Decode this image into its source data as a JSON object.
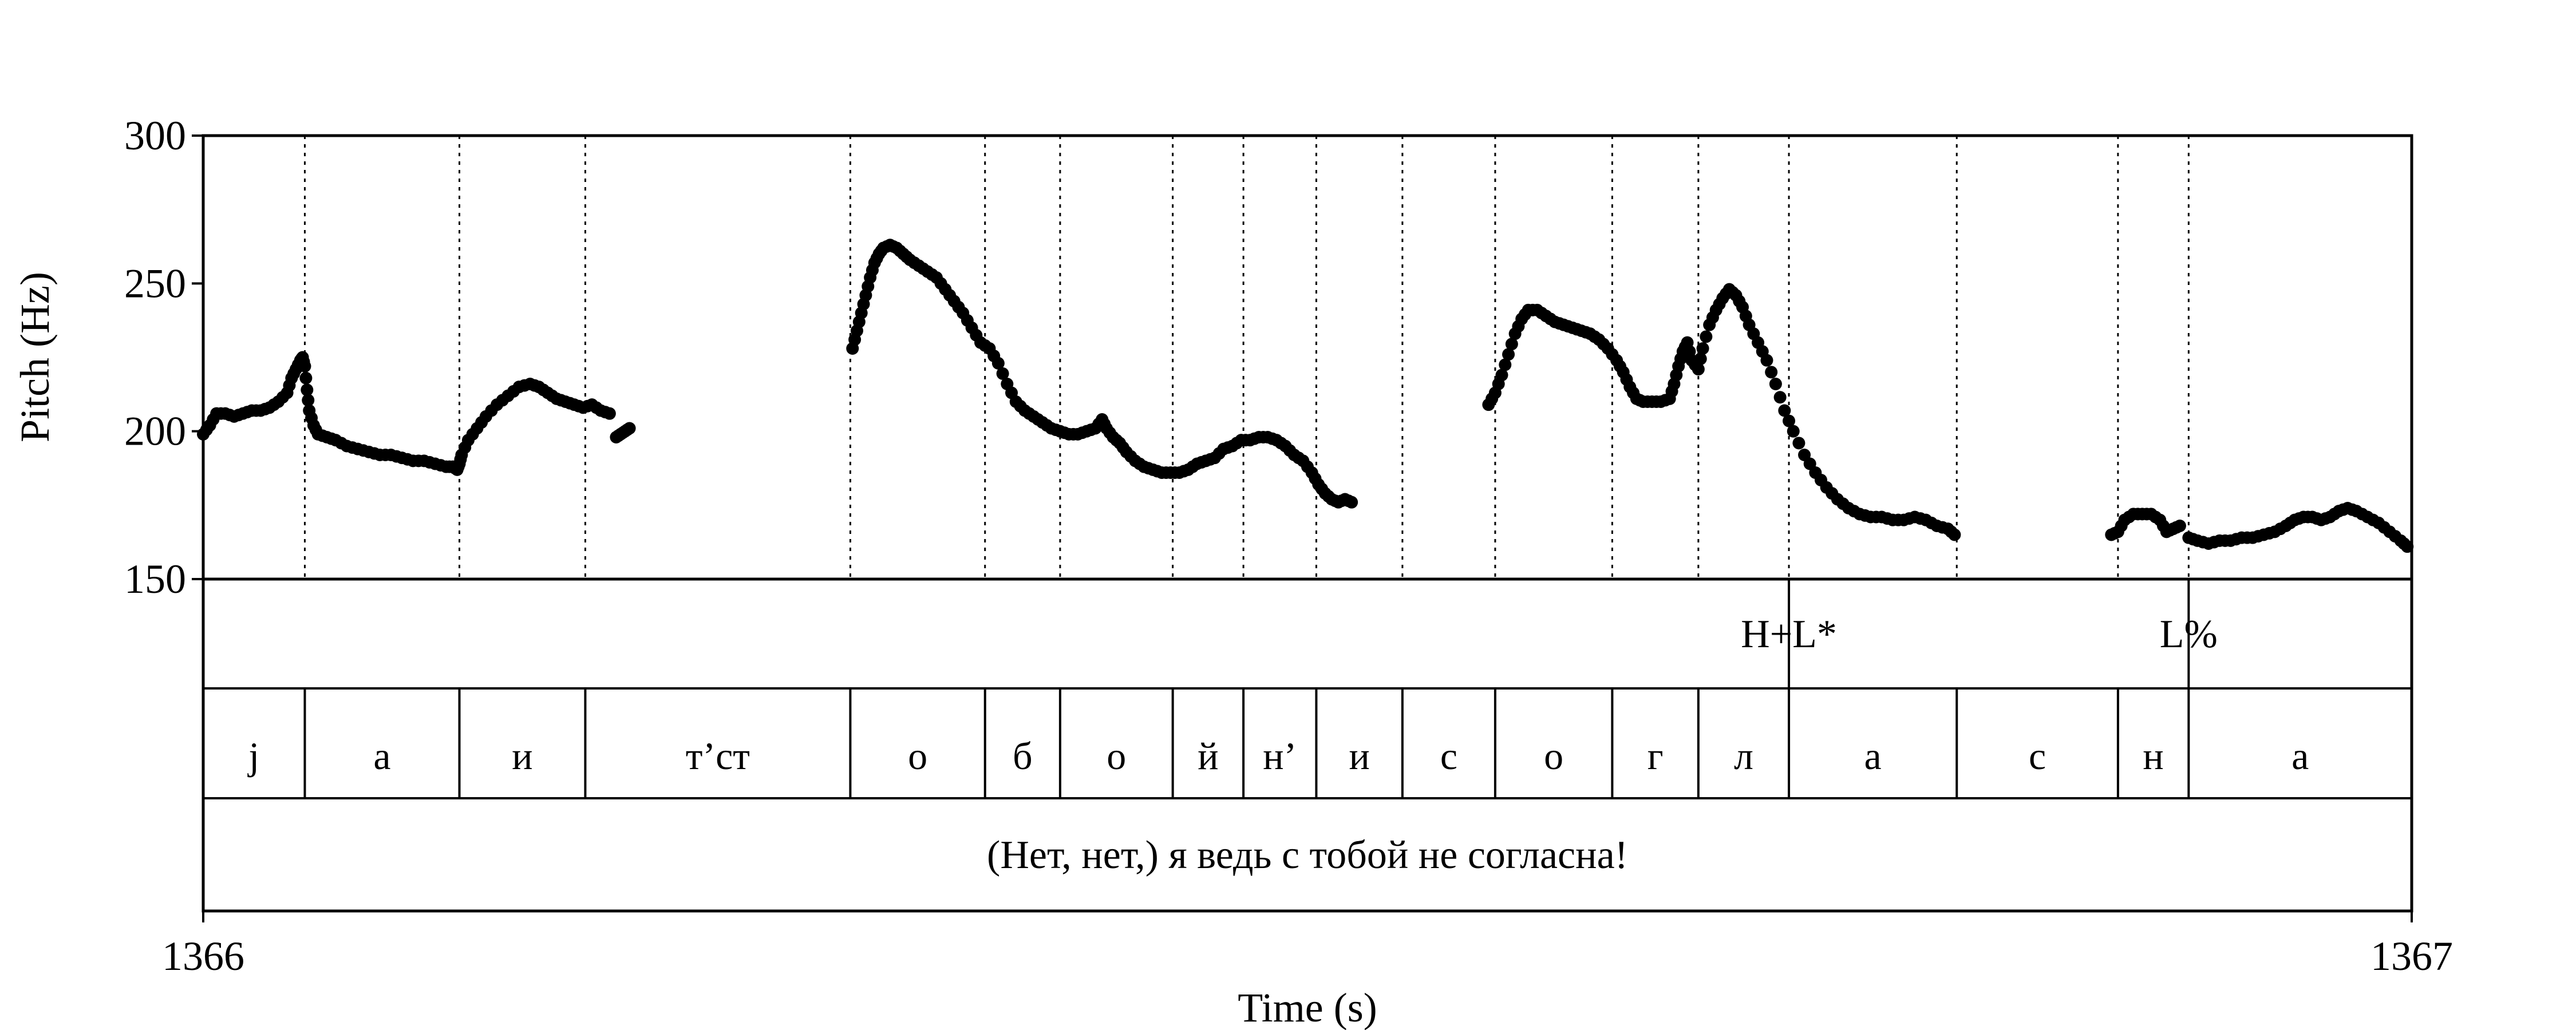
{
  "chart_data": {
    "type": "scatter",
    "xlabel": "Time (s)",
    "ylabel": "Pitch (Hz)",
    "xlim": [
      1366,
      1367
    ],
    "ylim": [
      150,
      300
    ],
    "x_tick_labels": [
      "1366",
      "1367"
    ],
    "y_ticks": [
      150,
      200,
      250,
      300
    ],
    "y_tick_labels": [
      "150",
      "200",
      "250",
      "300"
    ],
    "grid": false,
    "segment_boundaries": [
      0.046,
      0.116,
      0.173,
      0.293,
      0.354,
      0.388,
      0.439,
      0.471,
      0.504,
      0.543,
      0.585,
      0.638,
      0.677,
      0.718,
      0.794,
      0.867,
      0.899
    ],
    "tone_tier": [
      {
        "t": 0.718,
        "label": "H+L*"
      },
      {
        "t": 0.899,
        "label": "L%"
      }
    ],
    "segment_tier": [
      {
        "start": 0.0,
        "end": 0.046,
        "label": "j"
      },
      {
        "start": 0.046,
        "end": 0.116,
        "label": "а"
      },
      {
        "start": 0.116,
        "end": 0.173,
        "label": "и"
      },
      {
        "start": 0.173,
        "end": 0.293,
        "label": "т’ст"
      },
      {
        "start": 0.293,
        "end": 0.354,
        "label": "о"
      },
      {
        "start": 0.354,
        "end": 0.388,
        "label": "б"
      },
      {
        "start": 0.388,
        "end": 0.439,
        "label": "о"
      },
      {
        "start": 0.439,
        "end": 0.471,
        "label": "й"
      },
      {
        "start": 0.471,
        "end": 0.504,
        "label": "н’"
      },
      {
        "start": 0.504,
        "end": 0.543,
        "label": "и"
      },
      {
        "start": 0.543,
        "end": 0.585,
        "label": "с"
      },
      {
        "start": 0.585,
        "end": 0.638,
        "label": "о"
      },
      {
        "start": 0.638,
        "end": 0.677,
        "label": "г"
      },
      {
        "start": 0.677,
        "end": 0.718,
        "label": "л"
      },
      {
        "start": 0.718,
        "end": 0.794,
        "label": "а"
      },
      {
        "start": 0.794,
        "end": 0.867,
        "label": "с"
      },
      {
        "start": 0.867,
        "end": 0.899,
        "label": "н"
      },
      {
        "start": 0.899,
        "end": 1.0,
        "label": "а"
      }
    ],
    "sentence_tier": "(Нет, нет,) я ведь с тобой не согласна!",
    "pitch_contour": [
      [
        [
          0.0,
          199
        ],
        [
          0.003,
          202
        ],
        [
          0.006,
          206
        ],
        [
          0.01,
          206
        ],
        [
          0.014,
          205
        ],
        [
          0.018,
          206
        ],
        [
          0.022,
          207
        ],
        [
          0.026,
          207
        ],
        [
          0.03,
          208
        ],
        [
          0.034,
          210
        ],
        [
          0.038,
          213
        ],
        [
          0.04,
          218
        ],
        [
          0.042,
          221
        ],
        [
          0.044,
          224
        ],
        [
          0.045,
          225
        ],
        [
          0.046,
          222
        ],
        [
          0.047,
          214
        ],
        [
          0.048,
          207
        ],
        [
          0.05,
          202
        ],
        [
          0.052,
          199
        ],
        [
          0.056,
          198
        ],
        [
          0.06,
          197
        ],
        [
          0.065,
          195
        ],
        [
          0.07,
          194
        ],
        [
          0.075,
          193
        ],
        [
          0.08,
          192
        ],
        [
          0.085,
          192
        ],
        [
          0.09,
          191
        ],
        [
          0.095,
          190
        ],
        [
          0.1,
          190
        ],
        [
          0.105,
          189
        ],
        [
          0.11,
          188
        ],
        [
          0.113,
          188
        ],
        [
          0.115,
          187
        ],
        [
          0.116,
          189
        ],
        [
          0.117,
          192
        ],
        [
          0.12,
          197
        ],
        [
          0.124,
          201
        ],
        [
          0.128,
          205
        ],
        [
          0.133,
          209
        ],
        [
          0.138,
          212
        ],
        [
          0.143,
          215
        ],
        [
          0.148,
          216
        ],
        [
          0.152,
          215
        ],
        [
          0.156,
          213
        ],
        [
          0.16,
          211
        ],
        [
          0.164,
          210
        ],
        [
          0.168,
          209
        ],
        [
          0.172,
          208
        ],
        [
          0.176,
          209
        ],
        [
          0.18,
          207
        ],
        [
          0.184,
          206
        ]
      ],
      [
        [
          0.187,
          198
        ],
        [
          0.189,
          199
        ],
        [
          0.191,
          200
        ],
        [
          0.193,
          201
        ]
      ],
      [
        [
          0.294,
          228
        ],
        [
          0.296,
          234
        ],
        [
          0.298,
          240
        ],
        [
          0.3,
          246
        ],
        [
          0.302,
          252
        ],
        [
          0.304,
          257
        ],
        [
          0.306,
          260
        ],
        [
          0.308,
          262
        ],
        [
          0.311,
          263
        ],
        [
          0.314,
          262
        ],
        [
          0.317,
          260
        ],
        [
          0.32,
          258
        ],
        [
          0.324,
          256
        ],
        [
          0.328,
          254
        ],
        [
          0.332,
          252
        ],
        [
          0.336,
          248
        ],
        [
          0.34,
          244
        ],
        [
          0.344,
          240
        ],
        [
          0.348,
          235
        ],
        [
          0.352,
          230
        ],
        [
          0.356,
          228
        ],
        [
          0.36,
          223
        ],
        [
          0.364,
          216
        ],
        [
          0.368,
          210
        ],
        [
          0.372,
          207
        ],
        [
          0.376,
          205
        ],
        [
          0.38,
          203
        ],
        [
          0.384,
          201
        ],
        [
          0.388,
          200
        ],
        [
          0.392,
          199
        ],
        [
          0.396,
          199
        ],
        [
          0.4,
          200
        ],
        [
          0.404,
          201
        ],
        [
          0.407,
          204
        ],
        [
          0.409,
          201
        ],
        [
          0.412,
          198
        ],
        [
          0.415,
          196
        ],
        [
          0.418,
          193
        ],
        [
          0.422,
          190
        ],
        [
          0.426,
          188
        ],
        [
          0.43,
          187
        ],
        [
          0.434,
          186
        ],
        [
          0.438,
          186
        ],
        [
          0.442,
          186
        ],
        [
          0.446,
          187
        ],
        [
          0.45,
          189
        ],
        [
          0.454,
          190
        ],
        [
          0.458,
          191
        ],
        [
          0.462,
          194
        ],
        [
          0.466,
          195
        ],
        [
          0.47,
          197
        ],
        [
          0.474,
          197
        ],
        [
          0.478,
          198
        ],
        [
          0.482,
          198
        ],
        [
          0.486,
          197
        ],
        [
          0.49,
          195
        ],
        [
          0.494,
          192
        ],
        [
          0.498,
          190
        ],
        [
          0.502,
          186
        ],
        [
          0.505,
          182
        ],
        [
          0.508,
          179
        ],
        [
          0.511,
          177
        ],
        [
          0.514,
          176
        ],
        [
          0.517,
          177
        ],
        [
          0.52,
          176
        ]
      ],
      [
        [
          0.582,
          209
        ],
        [
          0.585,
          213
        ],
        [
          0.588,
          219
        ],
        [
          0.591,
          226
        ],
        [
          0.594,
          233
        ],
        [
          0.597,
          238
        ],
        [
          0.6,
          241
        ],
        [
          0.604,
          241
        ],
        [
          0.608,
          239
        ],
        [
          0.612,
          237
        ],
        [
          0.616,
          236
        ],
        [
          0.62,
          235
        ],
        [
          0.624,
          234
        ],
        [
          0.628,
          233
        ],
        [
          0.632,
          231
        ],
        [
          0.636,
          228
        ],
        [
          0.64,
          224
        ],
        [
          0.643,
          220
        ],
        [
          0.646,
          215
        ],
        [
          0.649,
          211
        ],
        [
          0.652,
          210
        ],
        [
          0.656,
          210
        ],
        [
          0.66,
          210
        ],
        [
          0.664,
          211
        ],
        [
          0.666,
          216
        ],
        [
          0.668,
          222
        ],
        [
          0.67,
          227
        ],
        [
          0.672,
          230
        ],
        [
          0.674,
          224
        ],
        [
          0.677,
          221
        ],
        [
          0.679,
          228
        ],
        [
          0.682,
          236
        ],
        [
          0.685,
          241
        ],
        [
          0.688,
          245
        ],
        [
          0.691,
          248
        ],
        [
          0.694,
          246
        ],
        [
          0.697,
          242
        ],
        [
          0.7,
          236
        ],
        [
          0.704,
          230
        ],
        [
          0.708,
          224
        ],
        [
          0.712,
          216
        ],
        [
          0.716,
          207
        ],
        [
          0.72,
          200
        ],
        [
          0.725,
          192
        ],
        [
          0.73,
          186
        ],
        [
          0.735,
          181
        ],
        [
          0.74,
          177
        ],
        [
          0.745,
          174
        ],
        [
          0.75,
          172
        ],
        [
          0.755,
          171
        ],
        [
          0.76,
          171
        ],
        [
          0.765,
          170
        ],
        [
          0.77,
          170
        ],
        [
          0.775,
          171
        ],
        [
          0.78,
          170
        ],
        [
          0.785,
          168
        ],
        [
          0.79,
          167
        ],
        [
          0.793,
          165
        ]
      ],
      [
        [
          0.864,
          165
        ],
        [
          0.867,
          166
        ],
        [
          0.87,
          170
        ],
        [
          0.874,
          172
        ],
        [
          0.878,
          172
        ],
        [
          0.882,
          172
        ],
        [
          0.886,
          170
        ],
        [
          0.889,
          166
        ],
        [
          0.892,
          167
        ],
        [
          0.895,
          168
        ]
      ],
      [
        [
          0.899,
          164
        ],
        [
          0.903,
          163
        ],
        [
          0.908,
          162
        ],
        [
          0.913,
          163
        ],
        [
          0.918,
          163
        ],
        [
          0.923,
          164
        ],
        [
          0.928,
          164
        ],
        [
          0.933,
          165
        ],
        [
          0.938,
          166
        ],
        [
          0.943,
          168
        ],
        [
          0.947,
          170
        ],
        [
          0.951,
          171
        ],
        [
          0.955,
          171
        ],
        [
          0.959,
          170
        ],
        [
          0.963,
          171
        ],
        [
          0.967,
          173
        ],
        [
          0.971,
          174
        ],
        [
          0.975,
          173
        ],
        [
          0.98,
          171
        ],
        [
          0.985,
          169
        ],
        [
          0.99,
          166
        ],
        [
          0.995,
          163
        ],
        [
          0.998,
          161
        ]
      ]
    ]
  }
}
